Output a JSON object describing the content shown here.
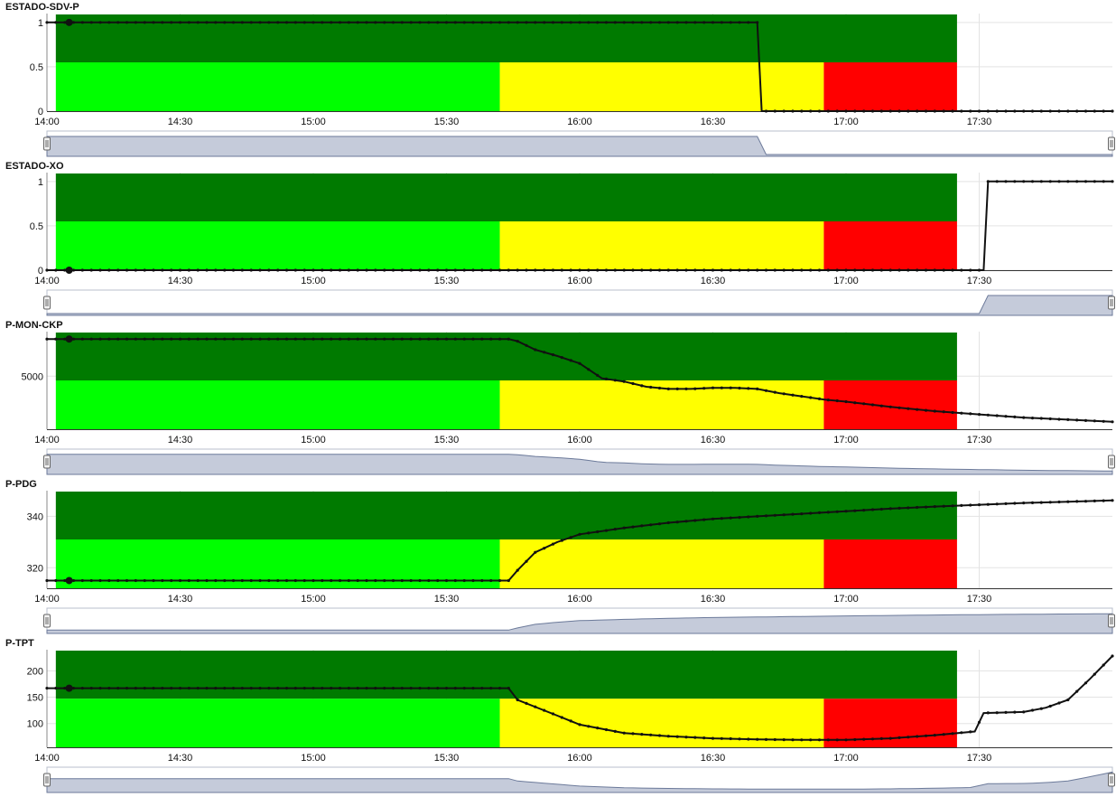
{
  "colors": {
    "dark_green": "#007a00",
    "light_green": "#00ff00",
    "yellow": "#ffff00",
    "red": "#ff0000",
    "line": "#111111",
    "navigator_fill": "#c5cbda",
    "navigator_line": "#6c7a9a"
  },
  "x_axis": {
    "range": [
      "14:00",
      "18:00"
    ],
    "ticks": [
      "14:00",
      "14:30",
      "15:00",
      "15:30",
      "16:00",
      "16:30",
      "17:00",
      "17:30"
    ]
  },
  "bands": [
    {
      "from": "14:02",
      "to": "15:42",
      "color": "light_green"
    },
    {
      "from": "15:42",
      "to": "16:55",
      "color": "yellow"
    },
    {
      "from": "16:55",
      "to": "17:25",
      "color": "red"
    }
  ],
  "chart_data": [
    {
      "type": "line",
      "title": "ESTADO-SDV-P",
      "ylim": [
        0,
        1.1
      ],
      "yticks": [
        "1",
        "0.5",
        "0"
      ],
      "ytick_values": [
        1,
        0.5,
        0
      ],
      "upper_band_from": 0.55,
      "x": [
        "14:00",
        "14:05",
        "16:40",
        "16:41",
        "18:00"
      ],
      "values": [
        1,
        1,
        1,
        0,
        0
      ]
    },
    {
      "type": "line",
      "title": "ESTADO-XO",
      "ylim": [
        0,
        1.1
      ],
      "yticks": [
        "1",
        "0.5",
        "0"
      ],
      "ytick_values": [
        1,
        0.5,
        0
      ],
      "upper_band_from": 0.55,
      "x": [
        "14:00",
        "14:05",
        "17:31",
        "17:32",
        "18:00"
      ],
      "values": [
        0,
        0,
        0,
        1,
        1
      ]
    },
    {
      "type": "line",
      "title": "P-MON-CKP",
      "ylim": [
        0,
        9200
      ],
      "yticks": [
        "5000"
      ],
      "ytick_values": [
        5000
      ],
      "upper_band_from": 4600,
      "x": [
        "14:00",
        "14:05",
        "15:44",
        "15:46",
        "15:50",
        "15:55",
        "16:00",
        "16:05",
        "16:10",
        "16:15",
        "16:20",
        "16:25",
        "16:30",
        "16:35",
        "16:40",
        "16:45",
        "16:50",
        "16:55",
        "17:00",
        "17:10",
        "17:20",
        "17:30",
        "17:40",
        "17:50",
        "18:00"
      ],
      "values": [
        8500,
        8500,
        8500,
        8300,
        7500,
        6900,
        6200,
        4800,
        4500,
        4000,
        3800,
        3800,
        3900,
        3900,
        3800,
        3400,
        3100,
        2800,
        2600,
        2100,
        1700,
        1400,
        1100,
        900,
        700
      ]
    },
    {
      "type": "line",
      "title": "P-PDG",
      "ylim": [
        312,
        350
      ],
      "yticks": [
        "340",
        "320"
      ],
      "ytick_values": [
        340,
        320
      ],
      "upper_band_from": 331,
      "x": [
        "14:00",
        "14:05",
        "15:44",
        "15:46",
        "15:50",
        "15:55",
        "16:00",
        "16:10",
        "16:20",
        "16:30",
        "16:40",
        "16:50",
        "17:00",
        "17:10",
        "17:20",
        "17:30",
        "17:40",
        "17:50",
        "18:00"
      ],
      "values": [
        315,
        315,
        315,
        319,
        326,
        330,
        333,
        335.5,
        337.5,
        339,
        340,
        341,
        342,
        343,
        343.8,
        344.5,
        345.2,
        345.7,
        346.2
      ]
    },
    {
      "type": "line",
      "title": "P-TPT",
      "ylim": [
        55,
        240
      ],
      "yticks": [
        "200",
        "150",
        "100"
      ],
      "ytick_values": [
        200,
        150,
        100
      ],
      "upper_band_from": 147,
      "x": [
        "14:00",
        "14:05",
        "15:44",
        "15:46",
        "15:55",
        "16:00",
        "16:10",
        "16:20",
        "16:30",
        "16:40",
        "16:50",
        "17:00",
        "17:10",
        "17:20",
        "17:29",
        "17:31",
        "17:40",
        "17:45",
        "17:50",
        "17:55",
        "18:00"
      ],
      "values": [
        167,
        167,
        167,
        145,
        115,
        98,
        82,
        76,
        72,
        70,
        69,
        69,
        72,
        78,
        85,
        120,
        122,
        130,
        145,
        185,
        228
      ]
    }
  ]
}
